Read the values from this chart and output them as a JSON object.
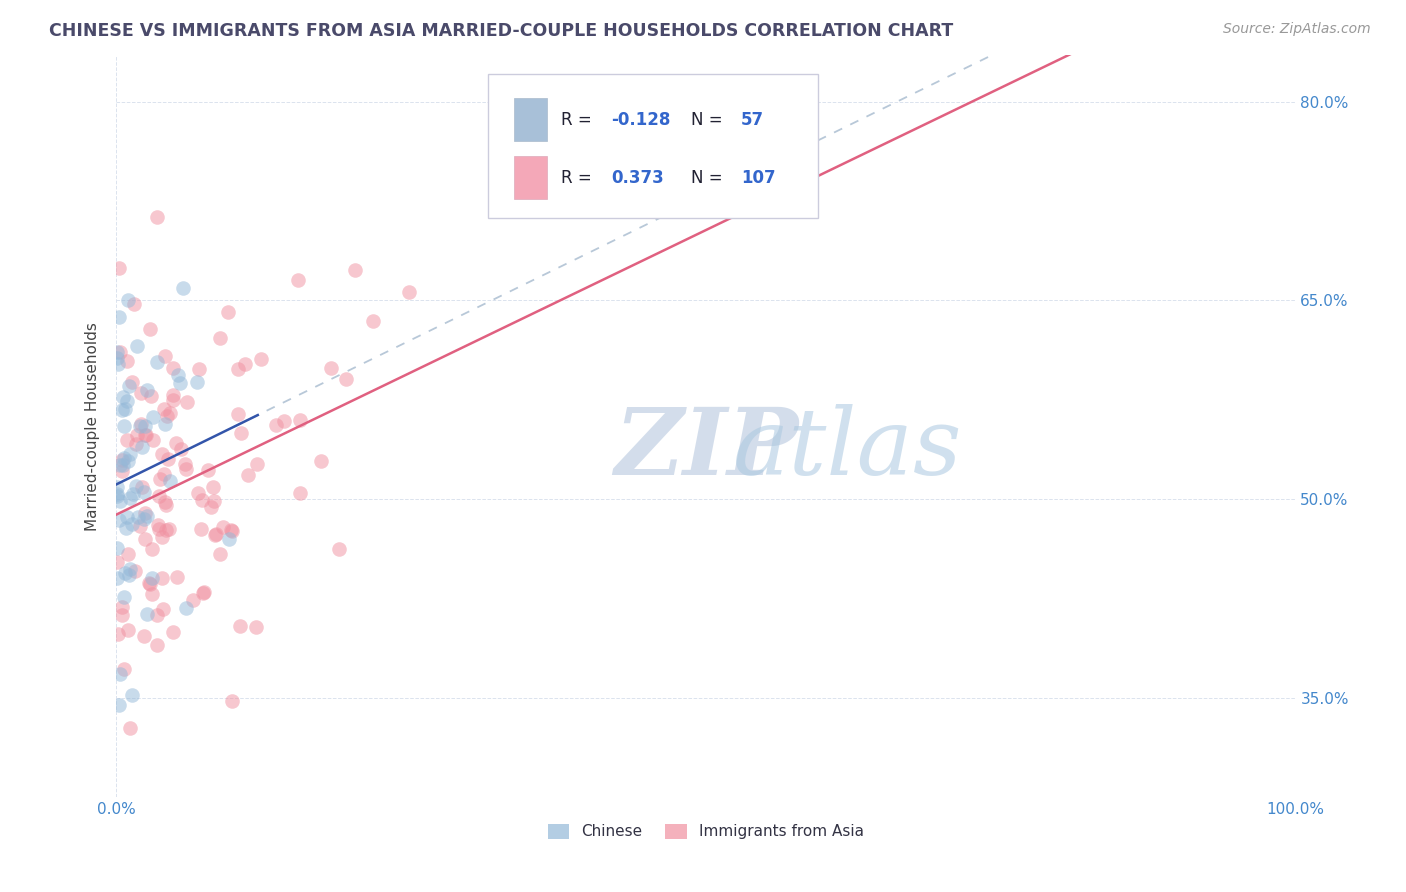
{
  "title": "CHINESE VS IMMIGRANTS FROM ASIA MARRIED-COUPLE HOUSEHOLDS CORRELATION CHART",
  "source": "Source: ZipAtlas.com",
  "ylabel": "Married-couple Households",
  "yaxis_labels": [
    "35.0%",
    "50.0%",
    "65.0%",
    "80.0%"
  ],
  "yaxis_values": [
    0.35,
    0.5,
    0.65,
    0.8
  ],
  "chinese_color": "#93b8d8",
  "asia_color": "#f090a0",
  "blue_line_color": "#3355aa",
  "pink_line_color": "#e06080",
  "dashed_line_color": "#b8c8d8",
  "legend_box_color": "#a8c0d8",
  "legend_pink_color": "#f4a8b8",
  "watermark_color": "#ccd8e8",
  "background_color": "#ffffff",
  "grid_color": "#d8e0ec",
  "xlim": [
    0.0,
    1.0
  ],
  "ylim": [
    0.275,
    0.835
  ],
  "chinese_seed": 12,
  "asia_seed": 7,
  "title_color": "#4a4a6a",
  "source_color": "#999999",
  "tick_color": "#4488cc",
  "ylabel_color": "#444444"
}
